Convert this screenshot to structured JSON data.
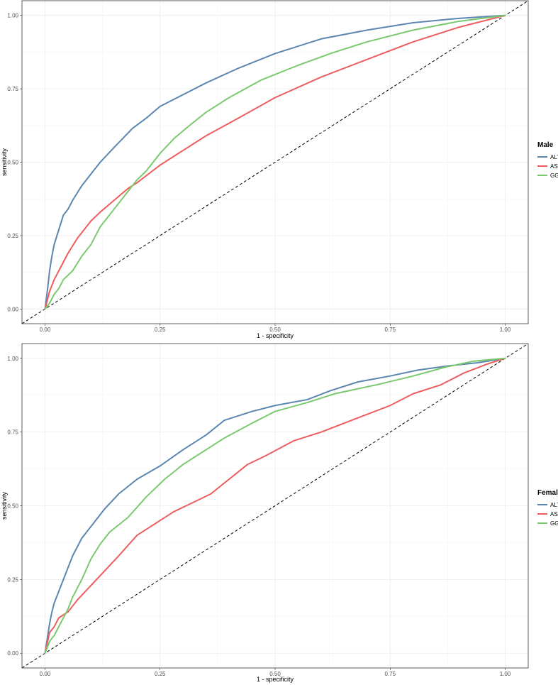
{
  "chart_data": [
    {
      "type": "line",
      "title": "",
      "xlabel": "1 - specificity",
      "ylabel": "sensitivity",
      "xlim": [
        -0.05,
        1.05
      ],
      "ylim": [
        -0.05,
        1.05
      ],
      "xticks": [
        "0.00",
        "0.25",
        "0.50",
        "0.75",
        "1.00"
      ],
      "yticks": [
        "0.00",
        "0.25",
        "0.50",
        "0.75",
        "1.00"
      ],
      "grid": true,
      "legend_title": "Male",
      "legend_position": "right",
      "reference_line": "diagonal dashed",
      "series": [
        {
          "name": "ALT",
          "color": "#5B86B0",
          "x": [
            0,
            0.005,
            0.01,
            0.015,
            0.02,
            0.03,
            0.04,
            0.05,
            0.06,
            0.08,
            0.1,
            0.12,
            0.15,
            0.19,
            0.22,
            0.25,
            0.3,
            0.35,
            0.42,
            0.5,
            0.6,
            0.7,
            0.8,
            0.9,
            1.0
          ],
          "y": [
            0,
            0.06,
            0.13,
            0.18,
            0.22,
            0.27,
            0.32,
            0.34,
            0.37,
            0.42,
            0.46,
            0.5,
            0.55,
            0.615,
            0.65,
            0.69,
            0.73,
            0.77,
            0.82,
            0.87,
            0.92,
            0.95,
            0.975,
            0.99,
            1.0
          ]
        },
        {
          "name": "AST",
          "color": "#EE5D5D",
          "x": [
            0,
            0.01,
            0.02,
            0.04,
            0.05,
            0.07,
            0.1,
            0.12,
            0.15,
            0.18,
            0.2,
            0.25,
            0.3,
            0.35,
            0.42,
            0.5,
            0.6,
            0.7,
            0.8,
            0.9,
            1.0
          ],
          "y": [
            0,
            0.06,
            0.1,
            0.16,
            0.19,
            0.24,
            0.3,
            0.33,
            0.37,
            0.41,
            0.43,
            0.49,
            0.54,
            0.59,
            0.65,
            0.72,
            0.79,
            0.85,
            0.91,
            0.96,
            1.0
          ]
        },
        {
          "name": "GGT",
          "color": "#7BC96F",
          "x": [
            0,
            0.01,
            0.02,
            0.03,
            0.04,
            0.06,
            0.08,
            0.1,
            0.12,
            0.15,
            0.18,
            0.2,
            0.22,
            0.25,
            0.28,
            0.31,
            0.35,
            0.4,
            0.47,
            0.55,
            0.62,
            0.7,
            0.8,
            0.9,
            1.0
          ],
          "y": [
            0,
            0.02,
            0.05,
            0.07,
            0.1,
            0.13,
            0.18,
            0.22,
            0.28,
            0.34,
            0.4,
            0.44,
            0.47,
            0.53,
            0.58,
            0.62,
            0.67,
            0.72,
            0.78,
            0.83,
            0.87,
            0.91,
            0.95,
            0.98,
            1.0
          ]
        }
      ]
    },
    {
      "type": "line",
      "title": "",
      "xlabel": "1 - specificity",
      "ylabel": "sensitivity",
      "xlim": [
        -0.05,
        1.05
      ],
      "ylim": [
        -0.05,
        1.05
      ],
      "xticks": [
        "0.00",
        "0.25",
        "0.50",
        "0.75",
        "1.00"
      ],
      "yticks": [
        "0.00",
        "0.25",
        "0.50",
        "0.75",
        "1.00"
      ],
      "grid": true,
      "legend_title": "Female",
      "legend_position": "right",
      "reference_line": "diagonal dashed",
      "series": [
        {
          "name": "ALT",
          "color": "#5B86B0",
          "x": [
            0,
            0.005,
            0.01,
            0.015,
            0.02,
            0.03,
            0.04,
            0.05,
            0.06,
            0.08,
            0.1,
            0.13,
            0.16,
            0.2,
            0.25,
            0.3,
            0.35,
            0.39,
            0.45,
            0.5,
            0.57,
            0.62,
            0.68,
            0.75,
            0.81,
            0.88,
            0.94,
            1.0
          ],
          "y": [
            0,
            0.05,
            0.1,
            0.14,
            0.17,
            0.21,
            0.25,
            0.29,
            0.33,
            0.39,
            0.43,
            0.49,
            0.54,
            0.59,
            0.635,
            0.69,
            0.74,
            0.79,
            0.82,
            0.84,
            0.86,
            0.89,
            0.92,
            0.94,
            0.96,
            0.975,
            0.985,
            1.0
          ]
        },
        {
          "name": "AST",
          "color": "#EE5D5D",
          "x": [
            0,
            0.01,
            0.02,
            0.03,
            0.05,
            0.07,
            0.1,
            0.13,
            0.16,
            0.2,
            0.24,
            0.28,
            0.32,
            0.36,
            0.4,
            0.44,
            0.48,
            0.54,
            0.6,
            0.65,
            0.7,
            0.75,
            0.8,
            0.86,
            0.91,
            0.96,
            1.0
          ],
          "y": [
            0,
            0.07,
            0.09,
            0.12,
            0.14,
            0.18,
            0.23,
            0.28,
            0.33,
            0.4,
            0.44,
            0.48,
            0.51,
            0.54,
            0.59,
            0.64,
            0.67,
            0.72,
            0.75,
            0.78,
            0.81,
            0.84,
            0.88,
            0.91,
            0.95,
            0.98,
            1.0
          ]
        },
        {
          "name": "GGT",
          "color": "#7BC96F",
          "x": [
            0,
            0.01,
            0.02,
            0.03,
            0.04,
            0.05,
            0.06,
            0.08,
            0.1,
            0.12,
            0.14,
            0.18,
            0.22,
            0.26,
            0.3,
            0.35,
            0.39,
            0.45,
            0.5,
            0.57,
            0.63,
            0.72,
            0.8,
            0.87,
            0.93,
            1.0
          ],
          "y": [
            0,
            0.04,
            0.06,
            0.09,
            0.12,
            0.15,
            0.19,
            0.25,
            0.32,
            0.37,
            0.41,
            0.46,
            0.53,
            0.59,
            0.64,
            0.69,
            0.73,
            0.78,
            0.82,
            0.85,
            0.88,
            0.91,
            0.94,
            0.97,
            0.99,
            1.0
          ]
        }
      ]
    }
  ]
}
